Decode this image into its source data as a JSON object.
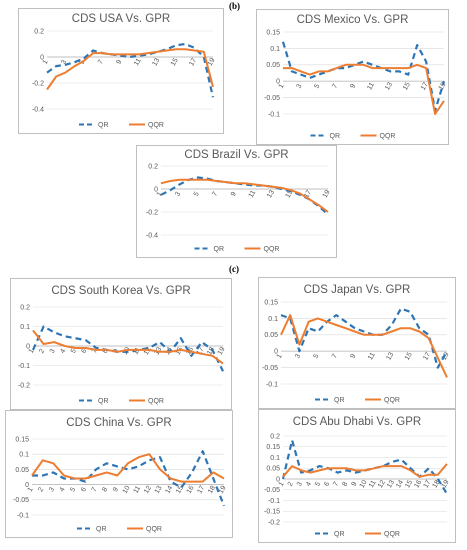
{
  "sections": {
    "b": "(b)",
    "c": "(c)"
  },
  "colors": {
    "qr": "#2e75b6",
    "qqr": "#ed7d31",
    "grid": "#d9d9d9",
    "axis": "#bfbfbf"
  },
  "chart_data": [
    {
      "id": "usa",
      "type": "line",
      "title": "CDS USA Vs. GPR",
      "x": [
        1,
        2,
        3,
        4,
        5,
        6,
        7,
        8,
        9,
        10,
        11,
        12,
        13,
        14,
        15,
        16,
        17,
        18,
        19
      ],
      "x_tick_labels": [
        "1",
        "3",
        "5",
        "7",
        "9",
        "11",
        "13",
        "15",
        "17",
        "19"
      ],
      "ylim": [
        -0.4,
        0.2
      ],
      "y_ticks": [
        -0.4,
        -0.2,
        0,
        0.2
      ],
      "y_tick_labels": [
        "-0.4",
        "-0.2",
        "0",
        "0.2"
      ],
      "grid": true,
      "legend": "bottom",
      "series": [
        {
          "name": "QR",
          "style": "dashed",
          "values": [
            -0.12,
            -0.07,
            -0.06,
            -0.04,
            -0.01,
            0.05,
            0.03,
            0.02,
            0.01,
            0.0,
            0.01,
            0.02,
            0.04,
            0.06,
            0.09,
            0.1,
            0.07,
            0.0,
            -0.31
          ]
        },
        {
          "name": "QQR",
          "style": "solid",
          "values": [
            -0.25,
            -0.15,
            -0.12,
            -0.07,
            -0.03,
            0.03,
            0.03,
            0.02,
            0.02,
            0.02,
            0.02,
            0.03,
            0.04,
            0.05,
            0.06,
            0.06,
            0.05,
            0.04,
            -0.23
          ]
        }
      ]
    },
    {
      "id": "mexico",
      "type": "line",
      "title": "CDS Mexico Vs. GPR",
      "x": [
        1,
        2,
        3,
        4,
        5,
        6,
        7,
        8,
        9,
        10,
        11,
        12,
        13,
        14,
        15,
        16,
        17,
        18,
        19
      ],
      "x_tick_labels": [
        "1",
        "3",
        "5",
        "7",
        "9",
        "11",
        "13",
        "15",
        "17",
        "19"
      ],
      "ylim": [
        -0.1,
        0.15
      ],
      "y_ticks": [
        -0.1,
        -0.05,
        0,
        0.05,
        0.1,
        0.15
      ],
      "y_tick_labels": [
        "-0.1",
        "-0.05",
        "0",
        "0.05",
        "0.1",
        "0.15"
      ],
      "grid": true,
      "legend": "bottom",
      "series": [
        {
          "name": "QR",
          "style": "dashed",
          "values": [
            0.12,
            0.03,
            0.02,
            0.01,
            0.02,
            0.03,
            0.04,
            0.04,
            0.05,
            0.06,
            0.05,
            0.04,
            0.03,
            0.03,
            0.02,
            0.11,
            0.06,
            -0.09,
            0.0
          ]
        },
        {
          "name": "QQR",
          "style": "solid",
          "values": [
            0.04,
            0.04,
            0.03,
            0.02,
            0.03,
            0.03,
            0.04,
            0.05,
            0.05,
            0.05,
            0.04,
            0.04,
            0.04,
            0.04,
            0.04,
            0.05,
            0.04,
            -0.1,
            -0.06
          ]
        }
      ]
    },
    {
      "id": "brazil",
      "type": "line",
      "title": "CDS Brazil Vs. GPR",
      "x": [
        1,
        2,
        3,
        4,
        5,
        6,
        7,
        8,
        9,
        10,
        11,
        12,
        13,
        14,
        15,
        16,
        17,
        18,
        19
      ],
      "x_tick_labels": [
        "1",
        "3",
        "5",
        "7",
        "9",
        "11",
        "13",
        "15",
        "17",
        "19"
      ],
      "ylim": [
        -0.4,
        0.2
      ],
      "y_ticks": [
        -0.4,
        -0.2,
        0,
        0.2
      ],
      "y_tick_labels": [
        "-0.4",
        "-0.2",
        "0",
        "0.2"
      ],
      "grid": true,
      "legend": "bottom",
      "series": [
        {
          "name": "QR",
          "style": "dashed",
          "values": [
            -0.05,
            -0.01,
            0.04,
            0.08,
            0.1,
            0.09,
            0.07,
            0.06,
            0.05,
            0.04,
            0.03,
            0.03,
            0.02,
            0.0,
            -0.02,
            -0.05,
            -0.09,
            -0.15,
            -0.22
          ]
        },
        {
          "name": "QQR",
          "style": "solid",
          "values": [
            0.05,
            0.07,
            0.08,
            0.08,
            0.08,
            0.08,
            0.07,
            0.06,
            0.05,
            0.05,
            0.04,
            0.03,
            0.02,
            0.01,
            -0.01,
            -0.04,
            -0.09,
            -0.14,
            -0.2
          ]
        }
      ]
    },
    {
      "id": "south-korea",
      "type": "line",
      "title": "CDS South Korea Vs. GPR",
      "x": [
        1,
        2,
        3,
        4,
        5,
        6,
        7,
        8,
        9,
        10,
        11,
        12,
        13,
        14,
        15,
        16,
        17,
        18,
        19
      ],
      "x_tick_labels": [
        "1",
        "2",
        "3",
        "4",
        "5",
        "6",
        "7",
        "8",
        "9",
        "10",
        "11",
        "12",
        "13",
        "14",
        "15",
        "16",
        "17",
        "18",
        "19"
      ],
      "ylim": [
        -0.2,
        0.2
      ],
      "y_ticks": [
        -0.2,
        -0.1,
        0,
        0.1,
        0.2
      ],
      "y_tick_labels": [
        "-0.2",
        "-0.1",
        "0",
        "0.1",
        "0.2"
      ],
      "grid": true,
      "legend": "bottom",
      "series": [
        {
          "name": "QR",
          "style": "dashed",
          "values": [
            -0.02,
            0.1,
            0.07,
            0.05,
            0.04,
            0.03,
            -0.01,
            -0.02,
            -0.03,
            -0.03,
            -0.02,
            -0.01,
            0.02,
            -0.03,
            0.04,
            -0.05,
            0.02,
            -0.02,
            -0.13
          ]
        },
        {
          "name": "QQR",
          "style": "solid",
          "values": [
            0.08,
            0.01,
            0.02,
            0.0,
            -0.01,
            -0.01,
            -0.02,
            -0.02,
            -0.03,
            -0.02,
            -0.02,
            -0.02,
            -0.03,
            -0.03,
            -0.02,
            -0.03,
            -0.04,
            -0.05,
            -0.09
          ]
        }
      ]
    },
    {
      "id": "japan",
      "type": "line",
      "title": "CDS Japan Vs. GPR",
      "x": [
        1,
        2,
        3,
        4,
        5,
        6,
        7,
        8,
        9,
        10,
        11,
        12,
        13,
        14,
        15,
        16,
        17,
        18,
        19
      ],
      "x_tick_labels": [
        "1",
        "3",
        "5",
        "7",
        "9",
        "11",
        "13",
        "15",
        "17",
        "19"
      ],
      "ylim": [
        -0.1,
        0.15
      ],
      "y_ticks": [
        -0.1,
        -0.05,
        0,
        0.05,
        0.1,
        0.15
      ],
      "y_tick_labels": [
        "-0.1",
        "-0.05",
        "0",
        "0.05",
        "0.1",
        "0.15"
      ],
      "grid": true,
      "legend": "bottom",
      "series": [
        {
          "name": "QR",
          "style": "dashed",
          "values": [
            0.11,
            0.1,
            0.0,
            0.07,
            0.06,
            0.09,
            0.11,
            0.09,
            0.07,
            0.06,
            0.05,
            0.05,
            0.08,
            0.13,
            0.12,
            0.07,
            0.05,
            -0.05,
            0.0
          ]
        },
        {
          "name": "QQR",
          "style": "solid",
          "values": [
            0.05,
            0.11,
            0.02,
            0.09,
            0.1,
            0.09,
            0.08,
            0.07,
            0.06,
            0.05,
            0.05,
            0.05,
            0.06,
            0.07,
            0.07,
            0.06,
            0.04,
            -0.02,
            -0.08
          ]
        }
      ]
    },
    {
      "id": "china",
      "type": "line",
      "title": "CDS China Vs. GPR",
      "x": [
        1,
        2,
        3,
        4,
        5,
        6,
        7,
        8,
        9,
        10,
        11,
        12,
        13,
        14,
        15,
        16,
        17,
        18,
        19
      ],
      "x_tick_labels": [
        "1",
        "2",
        "3",
        "4",
        "5",
        "6",
        "7",
        "8",
        "9",
        "10",
        "11",
        "12",
        "13",
        "14",
        "15",
        "16",
        "17",
        "18",
        "19"
      ],
      "ylim": [
        -0.1,
        0.15
      ],
      "y_ticks": [
        -0.1,
        -0.05,
        0,
        0.05,
        0.1,
        0.15
      ],
      "y_tick_labels": [
        "-0.1",
        "-0.05",
        "0",
        "0.05",
        "0.1",
        "0.15"
      ],
      "grid": true,
      "legend": "bottom",
      "series": [
        {
          "name": "QR",
          "style": "dashed",
          "values": [
            0.03,
            0.03,
            0.04,
            0.02,
            0.02,
            0.01,
            0.05,
            0.07,
            0.06,
            0.05,
            0.06,
            0.08,
            0.09,
            0.01,
            -0.01,
            0.04,
            0.11,
            0.02,
            -0.07
          ]
        },
        {
          "name": "QQR",
          "style": "solid",
          "values": [
            0.03,
            0.08,
            0.07,
            0.03,
            0.02,
            0.02,
            0.03,
            0.04,
            0.03,
            0.07,
            0.09,
            0.1,
            0.05,
            0.02,
            0.01,
            0.01,
            0.01,
            0.04,
            0.02
          ]
        }
      ]
    },
    {
      "id": "abu-dhabi",
      "type": "line",
      "title": "CDS Abu Dhabi Vs. GPR",
      "x": [
        1,
        2,
        3,
        4,
        5,
        6,
        7,
        8,
        9,
        10,
        11,
        12,
        13,
        14,
        15,
        16,
        17,
        18,
        19
      ],
      "x_tick_labels": [
        "1",
        "2",
        "3",
        "4",
        "5",
        "6",
        "7",
        "8",
        "9",
        "10",
        "11",
        "12",
        "13",
        "14",
        "15",
        "16",
        "17",
        "18",
        "19"
      ],
      "ylim": [
        -0.2,
        0.2
      ],
      "y_ticks": [
        -0.2,
        -0.15,
        -0.1,
        -0.05,
        0,
        0.05,
        0.1,
        0.15,
        0.2
      ],
      "y_tick_labels": [
        "-0.2",
        "-0.15",
        "-0.1",
        "-0.05",
        "0",
        "0.05",
        "0.1",
        "0.15",
        "0.2"
      ],
      "grid": true,
      "legend": "bottom",
      "series": [
        {
          "name": "QR",
          "style": "dashed",
          "values": [
            0.0,
            0.18,
            0.03,
            0.04,
            0.06,
            0.05,
            0.03,
            0.04,
            0.03,
            0.04,
            0.05,
            0.06,
            0.08,
            0.09,
            0.05,
            0.01,
            0.05,
            0.0,
            -0.07
          ]
        },
        {
          "name": "QQR",
          "style": "solid",
          "values": [
            0.01,
            0.06,
            0.04,
            0.03,
            0.04,
            0.05,
            0.05,
            0.05,
            0.04,
            0.04,
            0.05,
            0.06,
            0.06,
            0.06,
            0.04,
            0.01,
            0.02,
            0.02,
            0.07
          ]
        }
      ]
    }
  ]
}
